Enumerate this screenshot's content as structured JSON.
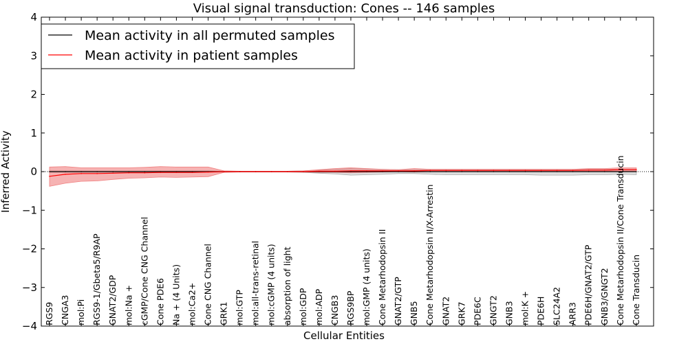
{
  "chart_data": {
    "type": "line",
    "title": "Visual signal transduction: Cones -- 146 samples",
    "xlabel": "Cellular Entities",
    "ylabel": "Inferred Activity",
    "ylim": [
      -4,
      4
    ],
    "yticks": [
      -4,
      -3,
      -2,
      -1,
      0,
      1,
      2,
      3,
      4
    ],
    "ytick_labels": [
      "−4",
      "−3",
      "−2",
      "−1",
      "0",
      "1",
      "2",
      "3",
      "4"
    ],
    "legend_position": "top-left",
    "categories": [
      "RGS9",
      "CNGA3",
      "mol:Pi",
      "RGS9-1/Gbeta5/R9AP",
      "GNAT2/GDP",
      "mol:Na +",
      "cGMP/Cone CNG Channel",
      "Cone PDE6",
      "Na + (4 Units)",
      "mol:Ca2+",
      "Cone CNG Channel",
      "GRK1",
      "mol:GTP",
      "mol:all-trans-retinal",
      "mol:cGMP (4 units)",
      "absorption of light",
      "mol:GDP",
      "mol:ADP",
      "CNGB3",
      "RGS9BP",
      "mol:GMP (4 units)",
      "Cone Metarhodopsin II",
      "GNAT2/GTP",
      "GNB5",
      "Cone Metarhodopsin II/X-Arrestin",
      "GNAT2",
      "GRK7",
      "PDE6C",
      "GNGT2",
      "GNB3",
      "mol:K +",
      "PDE6H",
      "SLC24A2",
      "ARR3",
      "PDE6H/GNAT2/GTP",
      "GNB3/GNGT2",
      "Cone Metarhodopsin II/Cone Transducin",
      "Cone Transducin"
    ],
    "series": [
      {
        "name": "Mean activity in all permuted samples",
        "color": "#000000",
        "band_color": "#a9a9a9",
        "values": [
          0.0,
          0.0,
          0.0,
          0.0,
          0.0,
          0.0,
          0.0,
          0.0,
          0.0,
          0.0,
          0.0,
          0.0,
          0.0,
          0.0,
          0.0,
          0.0,
          0.0,
          0.0,
          0.0,
          0.0,
          0.0,
          0.0,
          0.0,
          0.0,
          0.0,
          0.0,
          0.0,
          0.0,
          0.0,
          0.0,
          0.0,
          0.0,
          0.0,
          0.0,
          0.0,
          0.0,
          0.0,
          0.0
        ],
        "lower": [
          -0.02,
          -0.02,
          -0.02,
          -0.02,
          -0.02,
          -0.02,
          -0.02,
          -0.02,
          -0.02,
          -0.02,
          -0.02,
          -0.01,
          -0.01,
          -0.01,
          -0.01,
          -0.01,
          -0.02,
          -0.04,
          -0.06,
          -0.09,
          -0.08,
          -0.07,
          -0.05,
          -0.05,
          -0.07,
          -0.08,
          -0.08,
          -0.08,
          -0.08,
          -0.08,
          -0.08,
          -0.09,
          -0.09,
          -0.09,
          -0.08,
          -0.08,
          -0.07,
          -0.08
        ],
        "upper": [
          0.02,
          0.02,
          0.02,
          0.02,
          0.02,
          0.02,
          0.02,
          0.02,
          0.02,
          0.02,
          0.02,
          0.01,
          0.01,
          0.01,
          0.01,
          0.01,
          0.02,
          0.04,
          0.06,
          0.08,
          0.07,
          0.06,
          0.05,
          0.05,
          0.06,
          0.06,
          0.06,
          0.06,
          0.06,
          0.06,
          0.06,
          0.06,
          0.06,
          0.06,
          0.06,
          0.06,
          0.06,
          0.06
        ]
      },
      {
        "name": "Mean activity in patient samples",
        "color": "#ff0000",
        "band_color": "#f08080",
        "values": [
          -0.12,
          -0.07,
          -0.05,
          -0.05,
          -0.04,
          -0.03,
          -0.03,
          -0.02,
          -0.02,
          -0.02,
          -0.01,
          0.0,
          0.0,
          0.0,
          0.0,
          0.0,
          0.0,
          0.01,
          0.01,
          0.02,
          0.02,
          0.02,
          0.02,
          0.02,
          0.03,
          0.03,
          0.03,
          0.03,
          0.03,
          0.03,
          0.03,
          0.03,
          0.03,
          0.03,
          0.04,
          0.04,
          0.05,
          0.05
        ],
        "lower": [
          -0.38,
          -0.3,
          -0.25,
          -0.24,
          -0.2,
          -0.17,
          -0.16,
          -0.14,
          -0.15,
          -0.14,
          -0.13,
          -0.02,
          -0.01,
          -0.01,
          -0.01,
          -0.01,
          -0.01,
          -0.02,
          -0.02,
          -0.03,
          -0.02,
          -0.01,
          0.0,
          -0.01,
          0.0,
          0.0,
          0.0,
          0.0,
          0.0,
          0.0,
          0.0,
          0.0,
          0.0,
          0.0,
          0.01,
          0.01,
          0.01,
          0.01
        ],
        "upper": [
          0.12,
          0.13,
          0.1,
          0.1,
          0.1,
          0.1,
          0.11,
          0.13,
          0.12,
          0.12,
          0.12,
          0.02,
          0.01,
          0.01,
          0.01,
          0.01,
          0.02,
          0.05,
          0.08,
          0.1,
          0.08,
          0.06,
          0.05,
          0.08,
          0.06,
          0.06,
          0.06,
          0.06,
          0.06,
          0.06,
          0.06,
          0.06,
          0.06,
          0.06,
          0.08,
          0.08,
          0.1,
          0.1
        ]
      }
    ]
  }
}
